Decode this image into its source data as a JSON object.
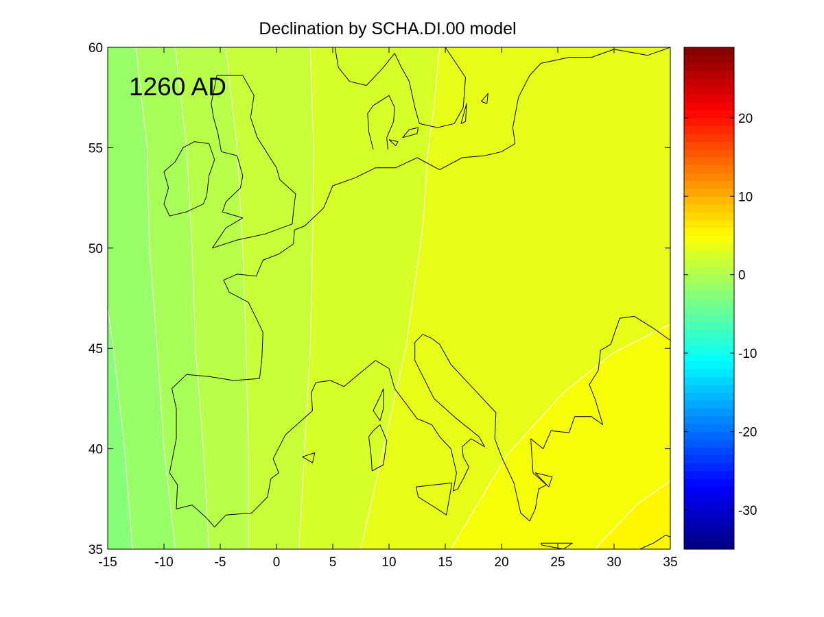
{
  "chart_data": {
    "type": "heatmap",
    "subtype": "filled-contour-map",
    "title": "Declination by SCHA.DI.00 model",
    "annotation": "1260 AD",
    "xlabel": "",
    "ylabel": "",
    "xlim": [
      -15,
      35
    ],
    "ylim": [
      35,
      60
    ],
    "x_ticks": [
      -15,
      -10,
      -5,
      0,
      5,
      10,
      15,
      20,
      25,
      30,
      35
    ],
    "y_ticks": [
      35,
      40,
      45,
      50,
      55,
      60
    ],
    "colorbar": {
      "colormap": "jet",
      "clim": [
        -35,
        29
      ],
      "ticks": [
        -30,
        -20,
        -10,
        0,
        10,
        20
      ],
      "levels": 64
    },
    "contour_lines": [
      {
        "level": -2,
        "points": [
          [
            -15,
            47.0
          ],
          [
            -14.5,
            45
          ],
          [
            -13.5,
            40
          ],
          [
            -12.8,
            35
          ]
        ]
      },
      {
        "level": -1,
        "points": [
          [
            -12.5,
            60
          ],
          [
            -11.5,
            55
          ],
          [
            -11.3,
            50
          ],
          [
            -10.6,
            45
          ],
          [
            -10,
            40
          ],
          [
            -9.0,
            35
          ]
        ]
      },
      {
        "level": 0,
        "points": [
          [
            -9.0,
            60
          ],
          [
            -8.0,
            55
          ],
          [
            -7.5,
            50
          ],
          [
            -7.2,
            45
          ],
          [
            -6.5,
            40
          ],
          [
            -6.0,
            35
          ]
        ]
      },
      {
        "level": 1,
        "points": [
          [
            -4.5,
            60
          ],
          [
            -3.5,
            55
          ],
          [
            -3.0,
            50
          ],
          [
            -2.7,
            45
          ],
          [
            -2.5,
            40
          ],
          [
            -2.5,
            35
          ]
        ]
      },
      {
        "level": 2,
        "points": [
          [
            3.0,
            60
          ],
          [
            3.3,
            55
          ],
          [
            3.2,
            50
          ],
          [
            3.0,
            45
          ],
          [
            2.5,
            40
          ],
          [
            2.0,
            35
          ]
        ]
      },
      {
        "level": 3,
        "points": [
          [
            14.5,
            60
          ],
          [
            14.0,
            57
          ],
          [
            13.5,
            55
          ],
          [
            13.0,
            51
          ],
          [
            11.5,
            45
          ],
          [
            9.5,
            40
          ],
          [
            7.5,
            35
          ]
        ]
      },
      {
        "level": 4,
        "points": [
          [
            15.5,
            35
          ],
          [
            20.5,
            39.7
          ],
          [
            25.5,
            42.8
          ],
          [
            30.0,
            44.8
          ],
          [
            35.0,
            46.2
          ]
        ]
      },
      {
        "level": 5,
        "points": [
          [
            28.3,
            35
          ],
          [
            32.0,
            37.2
          ],
          [
            35.0,
            38.4
          ]
        ]
      }
    ],
    "bands": [
      {
        "range": "< -2",
        "value": -2.5
      },
      {
        "range": "-2 to -1",
        "value": -1.5
      },
      {
        "range": "-1 to 0",
        "value": -0.5
      },
      {
        "range": "0 to 1",
        "value": 0.5
      },
      {
        "range": "1 to 2",
        "value": 1.5
      },
      {
        "range": "2 to 3",
        "value": 2.5
      },
      {
        "range": "3 to 4",
        "value": 3.5
      },
      {
        "range": "4 to 5",
        "value": 4.5
      },
      {
        "range": "> 5",
        "value": 5.5
      }
    ],
    "coastlines": [
      {
        "name": "great-britain",
        "points": [
          [
            -5.3,
            58.6
          ],
          [
            -3.0,
            58.6
          ],
          [
            -2.0,
            57.6
          ],
          [
            -2.3,
            56.5
          ],
          [
            -1.7,
            55.5
          ],
          [
            0.0,
            54.0
          ],
          [
            0.3,
            53.4
          ],
          [
            1.7,
            52.7
          ],
          [
            1.5,
            51.8
          ],
          [
            1.4,
            51.2
          ],
          [
            -1.0,
            50.7
          ],
          [
            -3.5,
            50.4
          ],
          [
            -5.7,
            50.0
          ],
          [
            -4.5,
            51.0
          ],
          [
            -3.0,
            51.5
          ],
          [
            -4.8,
            51.8
          ],
          [
            -4.5,
            52.3
          ],
          [
            -3.2,
            53.0
          ],
          [
            -3.0,
            53.6
          ],
          [
            -3.5,
            54.6
          ],
          [
            -4.9,
            54.8
          ],
          [
            -5.2,
            55.7
          ],
          [
            -5.6,
            56.5
          ],
          [
            -5.8,
            57.2
          ],
          [
            -5.3,
            58.6
          ]
        ]
      },
      {
        "name": "ireland",
        "points": [
          [
            -6.0,
            55.2
          ],
          [
            -5.5,
            54.4
          ],
          [
            -6.0,
            53.6
          ],
          [
            -6.2,
            52.6
          ],
          [
            -6.5,
            52.2
          ],
          [
            -8.0,
            51.8
          ],
          [
            -9.5,
            51.6
          ],
          [
            -10.0,
            52.2
          ],
          [
            -9.6,
            53.0
          ],
          [
            -10.0,
            53.8
          ],
          [
            -9.0,
            54.3
          ],
          [
            -8.3,
            55.0
          ],
          [
            -7.3,
            55.3
          ],
          [
            -6.0,
            55.2
          ]
        ]
      },
      {
        "name": "continent-west",
        "points": [
          [
            12.5,
            54.5
          ],
          [
            10.6,
            54.0
          ],
          [
            8.8,
            54.0
          ],
          [
            7.0,
            53.5
          ],
          [
            5.0,
            53.1
          ],
          [
            4.2,
            52.0
          ],
          [
            2.5,
            51.1
          ],
          [
            1.6,
            50.9
          ],
          [
            1.5,
            50.2
          ],
          [
            0.2,
            49.7
          ],
          [
            -1.2,
            49.4
          ],
          [
            -1.5,
            49.0
          ],
          [
            -1.8,
            48.6
          ],
          [
            -3.5,
            48.7
          ],
          [
            -4.7,
            48.4
          ],
          [
            -4.2,
            47.8
          ],
          [
            -2.5,
            47.3
          ],
          [
            -1.8,
            46.5
          ],
          [
            -1.2,
            45.8
          ],
          [
            -1.3,
            44.5
          ],
          [
            -1.5,
            43.5
          ],
          [
            -3.8,
            43.4
          ],
          [
            -6.0,
            43.6
          ],
          [
            -8.0,
            43.7
          ],
          [
            -9.3,
            43.0
          ],
          [
            -8.9,
            42.0
          ],
          [
            -8.9,
            40.5
          ],
          [
            -9.5,
            38.8
          ],
          [
            -8.8,
            38.2
          ],
          [
            -8.9,
            37.0
          ],
          [
            -7.5,
            37.2
          ],
          [
            -6.3,
            36.6
          ],
          [
            -5.5,
            36.1
          ],
          [
            -4.5,
            36.7
          ],
          [
            -2.2,
            36.8
          ],
          [
            -0.8,
            37.6
          ],
          [
            -0.5,
            38.5
          ],
          [
            0.2,
            38.8
          ],
          [
            -0.3,
            39.5
          ],
          [
            0.8,
            40.7
          ],
          [
            3.2,
            41.9
          ],
          [
            3.1,
            42.8
          ],
          [
            3.5,
            43.3
          ],
          [
            4.8,
            43.4
          ],
          [
            6.0,
            43.1
          ],
          [
            7.5,
            43.8
          ],
          [
            8.8,
            44.4
          ],
          [
            10.0,
            44.0
          ],
          [
            10.5,
            43.0
          ],
          [
            11.3,
            42.4
          ],
          [
            12.5,
            41.5
          ],
          [
            13.8,
            41.2
          ],
          [
            14.5,
            40.6
          ],
          [
            15.5,
            40.0
          ],
          [
            16.0,
            38.8
          ],
          [
            15.7,
            37.9
          ],
          [
            16.1,
            38.0
          ],
          [
            16.6,
            38.5
          ],
          [
            17.1,
            39.1
          ],
          [
            16.6,
            39.6
          ],
          [
            16.5,
            40.1
          ],
          [
            17.3,
            40.5
          ],
          [
            18.5,
            40.1
          ],
          [
            18.0,
            40.6
          ],
          [
            16.0,
            41.5
          ],
          [
            14.0,
            42.5
          ],
          [
            12.3,
            44.4
          ],
          [
            12.3,
            45.3
          ],
          [
            13.0,
            45.7
          ],
          [
            13.8,
            45.5
          ],
          [
            14.5,
            45.2
          ],
          [
            15.5,
            44.2
          ],
          [
            17.5,
            43.0
          ],
          [
            19.5,
            41.8
          ],
          [
            19.4,
            40.5
          ],
          [
            20.0,
            39.6
          ],
          [
            21.1,
            38.3
          ],
          [
            21.7,
            36.8
          ],
          [
            22.5,
            36.4
          ],
          [
            23.0,
            37.0
          ],
          [
            23.3,
            38.0
          ],
          [
            24.0,
            38.2
          ],
          [
            22.8,
            38.8
          ],
          [
            22.6,
            40.5
          ],
          [
            23.7,
            40.0
          ],
          [
            24.4,
            40.9
          ],
          [
            26.0,
            40.8
          ],
          [
            26.5,
            41.6
          ],
          [
            28.0,
            41.6
          ],
          [
            29.0,
            41.2
          ],
          [
            28.3,
            42.5
          ],
          [
            27.8,
            43.2
          ],
          [
            28.6,
            43.9
          ],
          [
            28.8,
            44.9
          ],
          [
            29.7,
            45.2
          ],
          [
            30.5,
            46.5
          ],
          [
            31.8,
            46.6
          ],
          [
            33.5,
            46.0
          ],
          [
            35.0,
            45.4
          ]
        ]
      },
      {
        "name": "scandinavia-coast",
        "points": [
          [
            35.0,
            60.0
          ],
          [
            33.0,
            59.6
          ],
          [
            30.0,
            59.9
          ],
          [
            28.0,
            59.5
          ],
          [
            26.0,
            59.5
          ],
          [
            23.5,
            59.2
          ],
          [
            22.5,
            58.6
          ],
          [
            21.5,
            57.5
          ],
          [
            21.0,
            56.0
          ],
          [
            21.2,
            55.2
          ],
          [
            20.0,
            54.8
          ],
          [
            18.5,
            54.6
          ],
          [
            16.5,
            54.5
          ],
          [
            14.5,
            53.9
          ],
          [
            12.5,
            54.5
          ]
        ]
      },
      {
        "name": "sweden-norway",
        "points": [
          [
            15.0,
            60.0
          ],
          [
            16.8,
            58.5
          ],
          [
            16.6,
            57.0
          ],
          [
            15.8,
            56.2
          ],
          [
            14.3,
            56.0
          ],
          [
            12.7,
            56.2
          ],
          [
            12.3,
            57.0
          ],
          [
            11.8,
            58.3
          ],
          [
            11.1,
            59.0
          ],
          [
            10.5,
            59.7
          ],
          [
            9.5,
            59.0
          ],
          [
            8.0,
            58.1
          ],
          [
            6.5,
            58.3
          ],
          [
            5.5,
            59.0
          ],
          [
            5.2,
            60.0
          ]
        ]
      },
      {
        "name": "jutland",
        "points": [
          [
            8.6,
            54.9
          ],
          [
            8.2,
            55.8
          ],
          [
            8.1,
            56.7
          ],
          [
            8.6,
            57.1
          ],
          [
            10.0,
            57.6
          ],
          [
            10.5,
            57.0
          ],
          [
            10.4,
            56.3
          ],
          [
            9.8,
            55.5
          ],
          [
            9.9,
            54.9
          ]
        ]
      },
      {
        "name": "zealand",
        "points": [
          [
            11.2,
            55.5
          ],
          [
            12.5,
            55.7
          ],
          [
            12.6,
            56.0
          ],
          [
            11.8,
            55.9
          ],
          [
            11.2,
            55.5
          ]
        ]
      },
      {
        "name": "funen",
        "points": [
          [
            10.0,
            55.4
          ],
          [
            10.8,
            55.3
          ],
          [
            10.6,
            55.1
          ],
          [
            10.0,
            55.4
          ]
        ]
      },
      {
        "name": "gotland",
        "points": [
          [
            18.2,
            57.3
          ],
          [
            18.8,
            57.7
          ],
          [
            18.7,
            57.2
          ],
          [
            18.2,
            57.3
          ]
        ]
      },
      {
        "name": "oland",
        "points": [
          [
            16.4,
            56.2
          ],
          [
            16.9,
            57.2
          ],
          [
            16.8,
            56.3
          ],
          [
            16.4,
            56.2
          ]
        ]
      },
      {
        "name": "corsica",
        "points": [
          [
            9.5,
            43.0
          ],
          [
            9.5,
            42.0
          ],
          [
            9.2,
            41.4
          ],
          [
            8.6,
            41.9
          ],
          [
            9.2,
            42.6
          ],
          [
            9.5,
            43.0
          ]
        ]
      },
      {
        "name": "sardinia",
        "points": [
          [
            9.2,
            41.2
          ],
          [
            9.8,
            40.4
          ],
          [
            9.5,
            39.2
          ],
          [
            8.5,
            38.9
          ],
          [
            8.4,
            39.7
          ],
          [
            8.2,
            40.6
          ],
          [
            8.6,
            40.9
          ],
          [
            9.2,
            41.2
          ]
        ]
      },
      {
        "name": "sicily",
        "points": [
          [
            12.4,
            38.1
          ],
          [
            15.6,
            38.3
          ],
          [
            15.1,
            36.7
          ],
          [
            14.3,
            37.0
          ],
          [
            12.6,
            37.6
          ],
          [
            12.4,
            38.1
          ]
        ]
      },
      {
        "name": "mallorca",
        "points": [
          [
            2.3,
            39.6
          ],
          [
            3.4,
            39.8
          ],
          [
            3.2,
            39.3
          ],
          [
            2.3,
            39.6
          ]
        ]
      },
      {
        "name": "crete",
        "points": [
          [
            23.5,
            35.3
          ],
          [
            26.3,
            35.3
          ],
          [
            25.5,
            35.0
          ],
          [
            23.6,
            35.2
          ],
          [
            23.5,
            35.3
          ]
        ]
      },
      {
        "name": "peloponnese-euboea",
        "points": [
          [
            23.0,
            38.8
          ],
          [
            24.5,
            38.6
          ],
          [
            24.2,
            38.1
          ],
          [
            23.0,
            38.8
          ]
        ]
      },
      {
        "name": "cyprus-west",
        "points": [
          [
            32.3,
            35.0
          ],
          [
            33.5,
            35.3
          ],
          [
            34.6,
            35.7
          ],
          [
            35.0,
            35.6
          ]
        ]
      }
    ]
  }
}
